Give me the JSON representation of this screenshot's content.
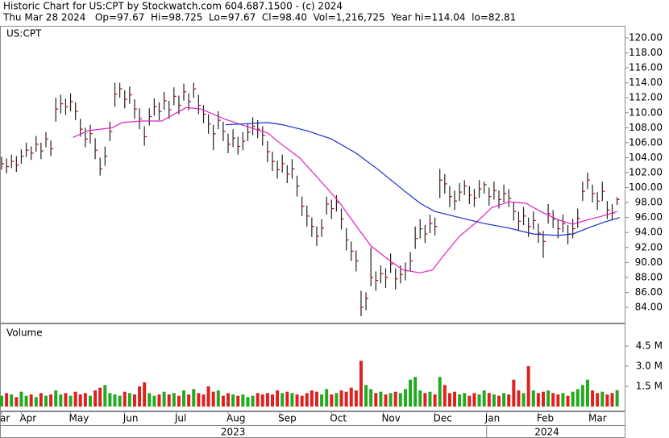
{
  "header": {
    "title": "Historic Chart for US:CPT by Stockwatch.com 604.687.1500 - (c) 2024",
    "quote": "Thu Mar 28 2024   Op=97.67  Hi=98.725  Lo=97.67  Cl=98.40  Vol=1,216,725  Year hi=114.04  lo=82.81"
  },
  "chart_data": [
    {
      "type": "ohlc",
      "label": "US:CPT",
      "color": "#222222",
      "close_color": "#cc0000",
      "xlim": [
        -0.66,
        253.4
      ],
      "xticks": [
        {
          "value": 0,
          "label": "ar"
        },
        {
          "value": 8,
          "label": "Apr"
        },
        {
          "value": 28,
          "label": "May"
        },
        {
          "value": 50,
          "label": "Jun"
        },
        {
          "value": 71,
          "label": "Jul"
        },
        {
          "value": 92,
          "label": "Aug"
        },
        {
          "value": 113,
          "label": "Sep"
        },
        {
          "value": 134,
          "label": "Oct"
        },
        {
          "value": 155,
          "label": "Nov"
        },
        {
          "value": 176,
          "label": "Dec"
        },
        {
          "value": 197,
          "label": "Jan"
        },
        {
          "value": 218,
          "label": "Feb"
        },
        {
          "value": 239,
          "label": "Mar"
        }
      ],
      "years": [
        {
          "value": 94,
          "label": "2023"
        },
        {
          "value": 221.5,
          "label": "2024"
        }
      ],
      "ylim": [
        81.95,
        121.62
      ],
      "yticks": [
        {
          "value": 84,
          "label": "84.00"
        },
        {
          "value": 86,
          "label": "86.00"
        },
        {
          "value": 88,
          "label": "88.00"
        },
        {
          "value": 90,
          "label": "90.00"
        },
        {
          "value": 92,
          "label": "92.00"
        },
        {
          "value": 94,
          "label": "94.00"
        },
        {
          "value": 96,
          "label": "96.00"
        },
        {
          "value": 98,
          "label": "98.00"
        },
        {
          "value": 100,
          "label": "100.00"
        },
        {
          "value": 102,
          "label": "102.00"
        },
        {
          "value": 104,
          "label": "104.00"
        },
        {
          "value": 106,
          "label": "106.00"
        },
        {
          "value": 108,
          "label": "108.00"
        },
        {
          "value": 110,
          "label": "110.00"
        },
        {
          "value": 112,
          "label": "112.00"
        },
        {
          "value": 114,
          "label": "114.00"
        },
        {
          "value": 116,
          "label": "116.00"
        },
        {
          "value": 118,
          "label": "118.00"
        },
        {
          "value": 120,
          "label": "120.00"
        }
      ],
      "x": [
        0,
        2,
        4,
        6,
        8,
        10,
        12,
        14,
        16,
        18,
        20,
        22,
        24,
        26,
        28,
        30,
        32,
        34,
        36,
        38,
        40,
        42,
        44,
        46,
        48,
        50,
        52,
        54,
        56,
        58,
        60,
        62,
        64,
        66,
        68,
        70,
        72,
        74,
        76,
        78,
        80,
        82,
        84,
        86,
        88,
        90,
        92,
        94,
        96,
        98,
        100,
        102,
        104,
        106,
        108,
        110,
        112,
        114,
        116,
        118,
        120,
        122,
        124,
        126,
        128,
        130,
        132,
        134,
        136,
        138,
        140,
        142,
        144,
        146,
        148,
        150,
        152,
        154,
        156,
        158,
        160,
        162,
        164,
        166,
        168,
        170,
        172,
        174,
        176,
        178,
        180,
        182,
        184,
        186,
        188,
        190,
        192,
        194,
        196,
        198,
        200,
        202,
        204,
        206,
        208,
        210,
        212,
        214,
        216,
        218,
        220,
        222,
        224,
        226,
        228,
        230,
        232,
        234,
        236,
        238,
        240,
        242,
        244,
        246,
        248,
        250
      ],
      "high": [
        104.1,
        103.9,
        104.4,
        104.2,
        105.1,
        106.0,
        105.5,
        106.9,
        106.0,
        107.4,
        106.3,
        112.0,
        112.4,
        111.9,
        112.6,
        111.4,
        109.2,
        108.0,
        108.4,
        106.6,
        104.0,
        105.5,
        108.8,
        114.0,
        114.0,
        113.0,
        113.5,
        111.8,
        110.6,
        108.2,
        110.6,
        111.9,
        111.4,
        112.8,
        111.6,
        113.4,
        112.3,
        113.9,
        112.6,
        114.04,
        112.4,
        111.0,
        109.8,
        108.4,
        110.2,
        108.8,
        107.2,
        107.8,
        106.8,
        107.4,
        108.6,
        109.4,
        109.0,
        108.2,
        106.2,
        104.8,
        103.6,
        104.4,
        103.0,
        103.8,
        101.6,
        98.8,
        97.6,
        96.0,
        94.8,
        95.8,
        98.8,
        98.4,
        99.0,
        97.2,
        94.6,
        92.8,
        91.6,
        86.2,
        86.0,
        92.0,
        88.8,
        89.6,
        89.2,
        91.2,
        89.2,
        89.6,
        90.0,
        91.4,
        94.8,
        95.8,
        95.0,
        96.4,
        96.0,
        102.5,
        101.8,
        100.2,
        99.6,
        100.6,
        101.0,
        100.2,
        99.8,
        101.0,
        100.8,
        100.0,
        100.8,
        99.6,
        100.4,
        99.8,
        98.0,
        96.8,
        97.4,
        96.0,
        96.8,
        95.2,
        94.2,
        97.8,
        97.0,
        95.8,
        96.4,
        95.0,
        95.8,
        97.2,
        100.8,
        102.0,
        100.4,
        99.4,
        100.8,
        98.2,
        97.8,
        98.725
      ],
      "low": [
        102.4,
        101.9,
        102.6,
        102.1,
        103.2,
        104.1,
        103.7,
        104.8,
        103.8,
        105.4,
        104.2,
        108.8,
        109.9,
        109.7,
        110.2,
        109.0,
        106.8,
        105.4,
        105.9,
        103.8,
        101.6,
        102.9,
        106.2,
        110.8,
        112.0,
        110.6,
        111.2,
        109.2,
        107.8,
        105.6,
        108.3,
        109.6,
        109.0,
        110.4,
        109.2,
        111.0,
        109.8,
        111.6,
        110.3,
        112.0,
        109.8,
        108.6,
        107.2,
        105.0,
        107.8,
        106.2,
        104.6,
        105.4,
        104.4,
        105.0,
        106.2,
        107.0,
        106.6,
        105.6,
        103.4,
        102.2,
        101.2,
        102.0,
        100.6,
        101.2,
        98.8,
        96.2,
        94.8,
        93.4,
        92.2,
        93.4,
        96.4,
        95.8,
        96.8,
        94.4,
        91.6,
        90.2,
        88.8,
        82.81,
        83.6,
        86.8,
        86.2,
        87.2,
        86.6,
        88.6,
        86.4,
        87.2,
        87.6,
        88.8,
        91.8,
        93.2,
        92.6,
        93.9,
        93.6,
        98.6,
        99.2,
        97.4,
        97.0,
        98.2,
        99.0,
        97.8,
        97.4,
        98.6,
        99.2,
        97.6,
        98.4,
        97.2,
        98.0,
        97.4,
        95.6,
        94.2,
        95.0,
        93.4,
        94.4,
        92.6,
        90.6,
        95.2,
        94.6,
        93.2,
        94.0,
        92.4,
        93.2,
        94.6,
        98.2,
        99.8,
        98.0,
        97.0,
        98.2,
        95.8,
        95.6,
        97.67
      ],
      "close": [
        103.2,
        102.8,
        103.5,
        103.0,
        104.2,
        105.0,
        104.6,
        105.8,
        104.9,
        106.5,
        105.2,
        110.5,
        111.2,
        110.8,
        111.5,
        110.2,
        107.8,
        106.5,
        107.2,
        105.0,
        102.5,
        104.2,
        107.5,
        112.5,
        113.2,
        111.8,
        112.4,
        110.5,
        109.2,
        106.8,
        109.5,
        110.8,
        110.2,
        111.6,
        110.4,
        112.2,
        111.0,
        112.8,
        111.5,
        113.2,
        111.0,
        109.8,
        108.5,
        107.2,
        109.0,
        107.5,
        105.8,
        106.6,
        105.5,
        106.2,
        107.4,
        108.2,
        107.8,
        107.0,
        104.8,
        103.5,
        102.4,
        103.2,
        101.8,
        102.5,
        100.2,
        97.5,
        96.2,
        94.8,
        93.5,
        94.6,
        97.8,
        97.2,
        98.0,
        95.8,
        93.0,
        91.5,
        90.2,
        84.0,
        85.2,
        88.0,
        87.6,
        88.5,
        88.0,
        89.8,
        87.8,
        88.4,
        88.9,
        90.2,
        93.2,
        94.5,
        93.8,
        95.2,
        94.8,
        101.0,
        100.5,
        98.8,
        98.2,
        99.4,
        100.2,
        99.0,
        98.6,
        99.8,
        100.4,
        98.8,
        99.6,
        98.4,
        99.2,
        98.6,
        96.8,
        95.5,
        96.2,
        94.8,
        95.6,
        93.9,
        92.8,
        96.5,
        95.8,
        94.5,
        95.2,
        93.8,
        94.5,
        95.9,
        99.5,
        101.0,
        99.2,
        98.2,
        99.5,
        97.0,
        96.6,
        98.4
      ],
      "lines": [
        {
          "color": "#e020c0",
          "x": [
            29,
            35,
            45,
            49,
            57,
            65,
            75,
            81,
            91,
            101,
            108,
            114,
            121,
            129,
            137,
            144,
            150,
            157,
            163,
            170,
            175,
            180,
            186,
            193,
            199,
            206,
            213,
            219,
            226,
            232,
            237,
            244,
            250
          ],
          "values": [
            106.7,
            107.6,
            108.0,
            108.7,
            108.9,
            108.9,
            110.7,
            110.5,
            109.1,
            108.0,
            107.3,
            105.7,
            104.0,
            101.1,
            98.1,
            94.9,
            92.2,
            90.4,
            89.0,
            88.6,
            89.0,
            91.1,
            93.5,
            95.4,
            97.3,
            98.1,
            97.9,
            96.8,
            95.7,
            95.1,
            95.6,
            96.2,
            96.8
          ]
        },
        {
          "color": "#1a2ec8",
          "x": [
            91,
            98,
            108,
            114,
            124,
            134,
            144,
            153,
            163,
            170,
            176,
            186,
            196,
            206,
            216,
            226,
            232,
            239,
            245,
            251
          ],
          "values": [
            108.4,
            108.5,
            108.7,
            108.4,
            107.6,
            106.5,
            104.6,
            102.4,
            99.7,
            97.9,
            96.8,
            96.0,
            95.2,
            94.6,
            93.8,
            93.6,
            93.8,
            94.7,
            95.4,
            96.0
          ]
        }
      ]
    },
    {
      "type": "volume",
      "label": "Volume",
      "up_color": "#22aa22",
      "down_color": "#dd2222",
      "ylim": [
        0,
        6.12
      ],
      "yticks": [
        {
          "value": 1.5,
          "label": "1.5 M"
        },
        {
          "value": 3,
          "label": "3.0 M"
        },
        {
          "value": 4.5,
          "label": "4.5 M"
        }
      ],
      "values": [
        0.8,
        1.0,
        0.9,
        0.7,
        1.1,
        0.8,
        0.9,
        0.7,
        1.0,
        0.8,
        0.9,
        1.2,
        0.9,
        1.0,
        0.8,
        1.1,
        0.9,
        1.0,
        0.8,
        1.2,
        1.4,
        1.6,
        1.0,
        0.9,
        0.8,
        1.1,
        1.0,
        0.9,
        1.5,
        1.8,
        1.0,
        0.8,
        0.9,
        1.1,
        0.9,
        1.0,
        0.8,
        1.2,
        0.9,
        1.3,
        1.0,
        0.9,
        1.5,
        1.1,
        1.2,
        0.8,
        1.0,
        0.9,
        0.8,
        0.9,
        0.7,
        0.8,
        1.0,
        0.9,
        1.0,
        0.9,
        1.2,
        1.0,
        1.1,
        1.0,
        0.9,
        0.8,
        1.0,
        1.2,
        1.1,
        0.9,
        1.3,
        0.9,
        1.0,
        1.2,
        1.1,
        1.4,
        1.2,
        3.4,
        1.6,
        1.3,
        1.0,
        1.1,
        0.9,
        1.0,
        1.1,
        1.0,
        1.3,
        2.0,
        2.2,
        1.2,
        1.0,
        1.1,
        0.9,
        2.2,
        1.6,
        1.0,
        1.1,
        0.9,
        1.0,
        0.8,
        1.0,
        0.9,
        1.2,
        1.0,
        0.9,
        0.8,
        1.0,
        0.9,
        2.0,
        1.2,
        1.0,
        3.0,
        1.2,
        1.0,
        1.1,
        1.2,
        1.0,
        0.9,
        1.0,
        0.8,
        1.1,
        1.3,
        1.6,
        2.0,
        1.2,
        1.0,
        1.1,
        0.9,
        1.0,
        1.22
      ]
    }
  ]
}
